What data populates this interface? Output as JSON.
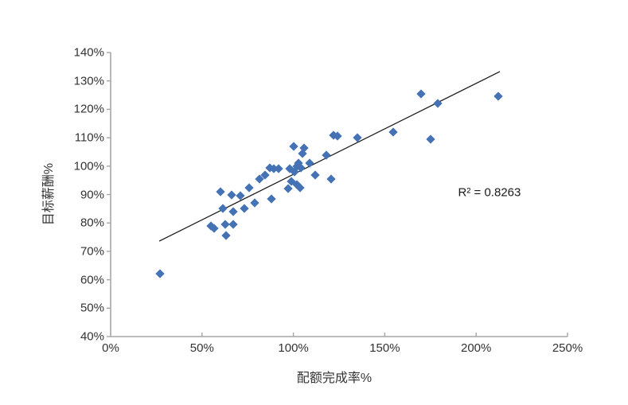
{
  "chart_data": {
    "type": "scatter",
    "title": "",
    "xlabel": "配额完成率%",
    "ylabel": "目标薪酬%",
    "xlim": [
      0,
      250
    ],
    "ylim": [
      40,
      140
    ],
    "x_tick_values": [
      0,
      50,
      100,
      150,
      200,
      250
    ],
    "x_tick_labels": [
      "0%",
      "50%",
      "100%",
      "150%",
      "200%",
      "250%"
    ],
    "y_tick_values": [
      40,
      50,
      60,
      70,
      80,
      90,
      100,
      110,
      120,
      130,
      140
    ],
    "y_tick_labels": [
      "40%",
      "50%",
      "60%",
      "70%",
      "80%",
      "90%",
      "100%",
      "110%",
      "120%",
      "130%",
      "140%"
    ],
    "grid": false,
    "legend": "none",
    "marker": {
      "shape": "diamond",
      "color": "#4472B4",
      "size": 11
    },
    "colors": {
      "marker": "#4472B4",
      "trendline": "#1a1a1a",
      "axis": "#A6A6A6",
      "text": "#333333"
    },
    "points": [
      [
        27,
        62
      ],
      [
        55,
        79
      ],
      [
        56.5,
        78
      ],
      [
        60,
        91
      ],
      [
        61.5,
        85
      ],
      [
        62.5,
        79.5
      ],
      [
        63,
        75.5
      ],
      [
        66,
        90
      ],
      [
        67,
        84
      ],
      [
        67,
        79.5
      ],
      [
        71,
        89.5
      ],
      [
        73,
        85
      ],
      [
        76,
        92.5
      ],
      [
        79,
        87
      ],
      [
        81.5,
        95.5
      ],
      [
        84.5,
        97
      ],
      [
        87,
        99.5
      ],
      [
        88,
        88.5
      ],
      [
        89.5,
        99
      ],
      [
        92,
        99
      ],
      [
        97,
        92
      ],
      [
        98,
        99
      ],
      [
        99,
        94.5
      ],
      [
        100,
        107
      ],
      [
        100.5,
        98
      ],
      [
        102,
        100
      ],
      [
        102,
        93.5
      ],
      [
        103,
        101
      ],
      [
        103.5,
        92.5
      ],
      [
        104,
        99.5
      ],
      [
        105,
        104.5
      ],
      [
        106,
        106.5
      ],
      [
        109,
        101
      ],
      [
        112,
        97
      ],
      [
        118,
        104
      ],
      [
        120.5,
        95.5
      ],
      [
        122,
        111
      ],
      [
        124,
        110.5
      ],
      [
        135,
        110
      ],
      [
        154.5,
        112
      ],
      [
        170,
        125.5
      ],
      [
        175,
        109.5
      ],
      [
        179,
        122
      ],
      [
        212,
        124.5
      ]
    ],
    "trendline": {
      "type": "linear",
      "x1": 26.6,
      "y1": 73.6,
      "x2": 213,
      "y2": 133.3,
      "r_squared": 0.8263
    },
    "annotation": {
      "text": "R² = 0.8263",
      "x": 207.3,
      "y": 90.7
    }
  }
}
